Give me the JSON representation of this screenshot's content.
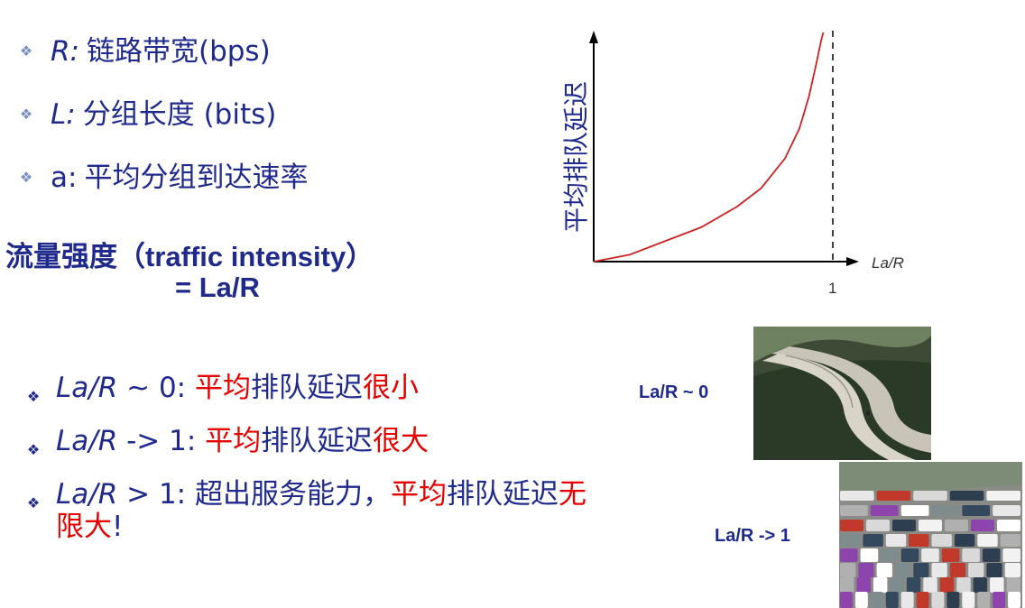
{
  "definitions": [
    {
      "name": "R:",
      "text": "链路带宽(bps)"
    },
    {
      "name": "L:",
      "text": "分组长度 (bits)"
    },
    {
      "name": "a",
      "sep": ":",
      "text": "平均分组到达速率"
    }
  ],
  "intensity": {
    "label_cn": "流量强度（",
    "label_en": "traffic intensity",
    "label_close": "）",
    "formula": "= La/R"
  },
  "cases": [
    {
      "cond": "La/R",
      "op": " ~ 0: ",
      "red1": "平均",
      "mid": "排队延迟",
      "red2": "很小",
      "tail": ""
    },
    {
      "cond": "La/R",
      "op": " -> 1: ",
      "red1": "平均",
      "mid": "排队延迟",
      "red2": "很大",
      "tail": ""
    },
    {
      "cond": "La/R",
      "op": " > 1: ",
      "pre": "超出服务能力，",
      "red1": "平均",
      "mid": "排队延迟",
      "red2": "无限大",
      "tail": "!"
    }
  ],
  "chart_data": {
    "type": "line",
    "ylabel": "平均排队延迟",
    "xlabel": "La/R",
    "x_ticks": [
      "1"
    ],
    "xlim": [
      0,
      1.15
    ],
    "x": [
      0,
      0.15,
      0.3,
      0.45,
      0.6,
      0.7,
      0.8,
      0.86,
      0.9,
      0.93,
      0.95,
      0.96
    ],
    "y": [
      0,
      0.03,
      0.09,
      0.15,
      0.24,
      0.32,
      0.45,
      0.58,
      0.72,
      0.86,
      0.96,
      1.0
    ],
    "vline_x": 1,
    "curve_color": "#cc2222"
  },
  "pictures": {
    "empty_label": "La/R ~ 0",
    "jam_label": "La/R -> 1"
  },
  "colors": {
    "text": "#1f2a8c",
    "highlight": "#e60000"
  }
}
